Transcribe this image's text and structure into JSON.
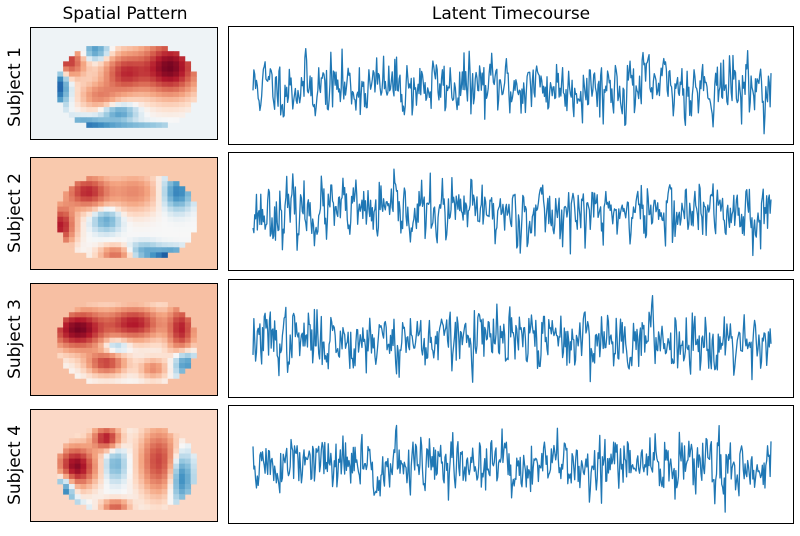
{
  "titles": {
    "spatial": "Spatial Pattern",
    "latent": "Latent Timecourse"
  },
  "colors": {
    "line": "#1f77b4",
    "colormap": "RdBu_r"
  },
  "chart_data": [
    {
      "type": "heatmap",
      "subject": "Subject 1",
      "colormap": "RdBu_r",
      "background": "#eef3f6",
      "blobs": [
        {
          "cx": 0.18,
          "cy": 0.3,
          "sx": 0.07,
          "sy": 0.1,
          "a": 0.75
        },
        {
          "cx": 0.5,
          "cy": 0.4,
          "sx": 0.08,
          "sy": 0.12,
          "a": 0.65
        },
        {
          "cx": 0.74,
          "cy": 0.35,
          "sx": 0.1,
          "sy": 0.16,
          "a": 0.95
        },
        {
          "cx": 0.36,
          "cy": 0.6,
          "sx": 0.07,
          "sy": 0.08,
          "a": 0.35
        },
        {
          "cx": 0.14,
          "cy": 0.5,
          "sx": 0.04,
          "sy": 0.12,
          "a": -0.9
        },
        {
          "cx": 0.34,
          "cy": 0.2,
          "sx": 0.05,
          "sy": 0.06,
          "a": -0.5
        },
        {
          "cx": 0.28,
          "cy": 0.85,
          "sx": 0.1,
          "sy": 0.04,
          "a": -0.55
        },
        {
          "cx": 0.55,
          "cy": 0.92,
          "sx": 0.18,
          "sy": 0.04,
          "a": -0.95
        },
        {
          "cx": 0.47,
          "cy": 0.75,
          "sx": 0.06,
          "sy": 0.05,
          "a": -0.45
        }
      ]
    },
    {
      "type": "heatmap",
      "subject": "Subject 2",
      "colormap": "RdBu_r",
      "background": "#f9c9ad",
      "blobs": [
        {
          "cx": 0.3,
          "cy": 0.3,
          "sx": 0.08,
          "sy": 0.1,
          "a": 0.7
        },
        {
          "cx": 0.16,
          "cy": 0.6,
          "sx": 0.05,
          "sy": 0.12,
          "a": 0.75
        },
        {
          "cx": 0.55,
          "cy": 0.3,
          "sx": 0.09,
          "sy": 0.12,
          "a": 0.35
        },
        {
          "cx": 0.4,
          "cy": 0.55,
          "sx": 0.05,
          "sy": 0.07,
          "a": -0.4
        },
        {
          "cx": 0.78,
          "cy": 0.3,
          "sx": 0.05,
          "sy": 0.1,
          "a": -0.6
        },
        {
          "cx": 0.75,
          "cy": 0.88,
          "sx": 0.07,
          "sy": 0.05,
          "a": -0.95
        },
        {
          "cx": 0.6,
          "cy": 0.82,
          "sx": 0.06,
          "sy": 0.05,
          "a": -0.35
        },
        {
          "cx": 0.45,
          "cy": 0.85,
          "sx": 0.06,
          "sy": 0.05,
          "a": 0.45
        }
      ]
    },
    {
      "type": "heatmap",
      "subject": "Subject 3",
      "colormap": "RdBu_r",
      "background": "#f7bfa3",
      "blobs": [
        {
          "cx": 0.25,
          "cy": 0.4,
          "sx": 0.1,
          "sy": 0.12,
          "a": 0.95
        },
        {
          "cx": 0.55,
          "cy": 0.35,
          "sx": 0.1,
          "sy": 0.1,
          "a": 0.75
        },
        {
          "cx": 0.8,
          "cy": 0.4,
          "sx": 0.05,
          "sy": 0.15,
          "a": 0.7
        },
        {
          "cx": 0.4,
          "cy": 0.7,
          "sx": 0.07,
          "sy": 0.07,
          "a": 0.6
        },
        {
          "cx": 0.45,
          "cy": 0.55,
          "sx": 0.05,
          "sy": 0.05,
          "a": -0.3
        },
        {
          "cx": 0.82,
          "cy": 0.7,
          "sx": 0.04,
          "sy": 0.08,
          "a": -0.55
        },
        {
          "cx": 0.2,
          "cy": 0.2,
          "sx": 0.05,
          "sy": 0.05,
          "a": -0.2
        },
        {
          "cx": 0.65,
          "cy": 0.75,
          "sx": 0.05,
          "sy": 0.06,
          "a": 0.35
        }
      ]
    },
    {
      "type": "heatmap",
      "subject": "Subject 4",
      "colormap": "RdBu_r",
      "background": "#fbd8c6",
      "blobs": [
        {
          "cx": 0.24,
          "cy": 0.5,
          "sx": 0.07,
          "sy": 0.12,
          "a": 0.9
        },
        {
          "cx": 0.4,
          "cy": 0.25,
          "sx": 0.05,
          "sy": 0.07,
          "a": 0.75
        },
        {
          "cx": 0.68,
          "cy": 0.45,
          "sx": 0.07,
          "sy": 0.2,
          "a": 0.6
        },
        {
          "cx": 0.17,
          "cy": 0.72,
          "sx": 0.04,
          "sy": 0.1,
          "a": -0.7
        },
        {
          "cx": 0.23,
          "cy": 0.88,
          "sx": 0.04,
          "sy": 0.04,
          "a": -0.5
        },
        {
          "cx": 0.45,
          "cy": 0.48,
          "sx": 0.04,
          "sy": 0.1,
          "a": -0.35
        },
        {
          "cx": 0.8,
          "cy": 0.6,
          "sx": 0.04,
          "sy": 0.15,
          "a": -0.6
        },
        {
          "cx": 0.45,
          "cy": 0.85,
          "sx": 0.05,
          "sy": 0.04,
          "a": 0.5
        }
      ]
    },
    {
      "type": "line",
      "subject": "Subject 1",
      "points": 600,
      "seed": 11,
      "ylim": [
        -3.5,
        3.5
      ]
    },
    {
      "type": "line",
      "subject": "Subject 2",
      "points": 600,
      "seed": 23,
      "ylim": [
        -3.5,
        3.5
      ]
    },
    {
      "type": "line",
      "subject": "Subject 3",
      "points": 600,
      "seed": 37,
      "ylim": [
        -3.5,
        3.5
      ]
    },
    {
      "type": "line",
      "subject": "Subject 4",
      "points": 600,
      "seed": 51,
      "ylim": [
        -3.5,
        3.5
      ]
    }
  ],
  "rows": [
    {
      "label": "Subject 1"
    },
    {
      "label": "Subject 2"
    },
    {
      "label": "Subject 3"
    },
    {
      "label": "Subject 4"
    }
  ]
}
